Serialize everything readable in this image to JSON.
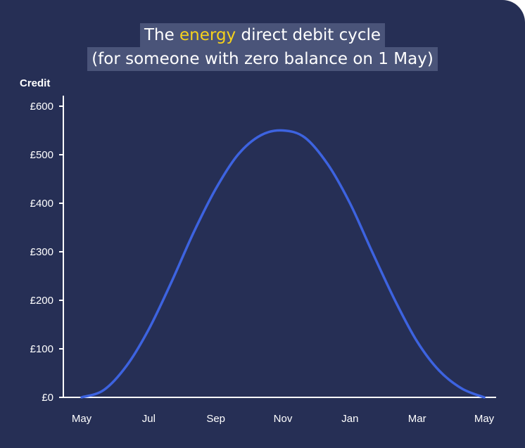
{
  "title": {
    "prefix": "The ",
    "highlight": "energy",
    "suffix": " direct debit cycle",
    "line2": "(for someone with zero balance on 1 May)"
  },
  "colors": {
    "background": "#262f55",
    "title_highlight": "#f5d11c",
    "title_box": "#4a5479",
    "line": "#3d63e0",
    "axis": "#ffffff"
  },
  "chart_data": {
    "type": "line",
    "ylabel": "Credit",
    "xlabel": "",
    "x_ticks": [
      "May",
      "Jul",
      "Sep",
      "Nov",
      "Jan",
      "Mar",
      "May"
    ],
    "y_ticks": [
      "£0",
      "£100",
      "£200",
      "£300",
      "£400",
      "£500",
      "£600"
    ],
    "ylim": [
      0,
      600
    ],
    "grid": false,
    "series": [
      {
        "values": [
          0,
          15,
          65,
          140,
          235,
          340,
          430,
          500,
          540,
          550,
          535,
          480,
          400,
          300,
          200,
          115,
          55,
          18,
          0
        ],
        "x": [
          0,
          0.33,
          0.67,
          1,
          1.33,
          1.67,
          2,
          2.33,
          2.67,
          3,
          3.33,
          3.67,
          4,
          4.33,
          4.67,
          5,
          5.33,
          5.67,
          6
        ]
      }
    ]
  }
}
